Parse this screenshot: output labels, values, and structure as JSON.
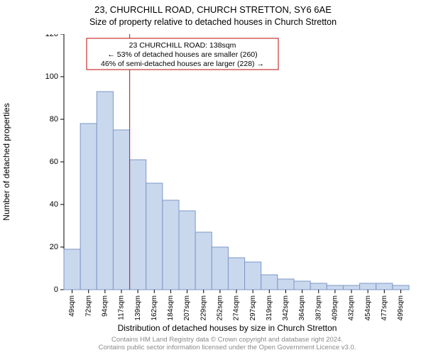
{
  "titles": {
    "line1": "23, CHURCHILL ROAD, CHURCH STRETTON, SY6 6AE",
    "line2": "Size of property relative to detached houses in Church Stretton"
  },
  "y_axis": {
    "label": "Number of detached properties"
  },
  "x_axis": {
    "label": "Distribution of detached houses by size in Church Stretton"
  },
  "footer": {
    "line1": "Contains HM Land Registry data © Crown copyright and database right 2024.",
    "line2": "Contains public sector information licensed under the Open Government Licence v3.0."
  },
  "chart": {
    "type": "histogram",
    "background_color": "#ffffff",
    "bar_fill": "#c9d8ed",
    "bar_stroke": "#7d97c7",
    "ref_line_color": "#c83232",
    "annot_border_color": "#c83232",
    "ylim": [
      0,
      120
    ],
    "ytick_step": 20,
    "categories": [
      "49sqm",
      "72sqm",
      "94sqm",
      "117sqm",
      "139sqm",
      "162sqm",
      "184sqm",
      "207sqm",
      "229sqm",
      "252sqm",
      "274sqm",
      "297sqm",
      "319sqm",
      "342sqm",
      "364sqm",
      "387sqm",
      "409sqm",
      "432sqm",
      "454sqm",
      "477sqm",
      "499sqm"
    ],
    "values": [
      19,
      78,
      93,
      75,
      61,
      50,
      42,
      37,
      27,
      20,
      15,
      13,
      7,
      5,
      4,
      3,
      2,
      2,
      3,
      3,
      2
    ],
    "ref_line_after_index": 3,
    "annotation": {
      "line1": "23 CHURCHILL ROAD: 138sqm",
      "line2": "← 53% of detached houses are smaller (260)",
      "line3": "46% of semi-detached houses are larger (228) →"
    }
  }
}
